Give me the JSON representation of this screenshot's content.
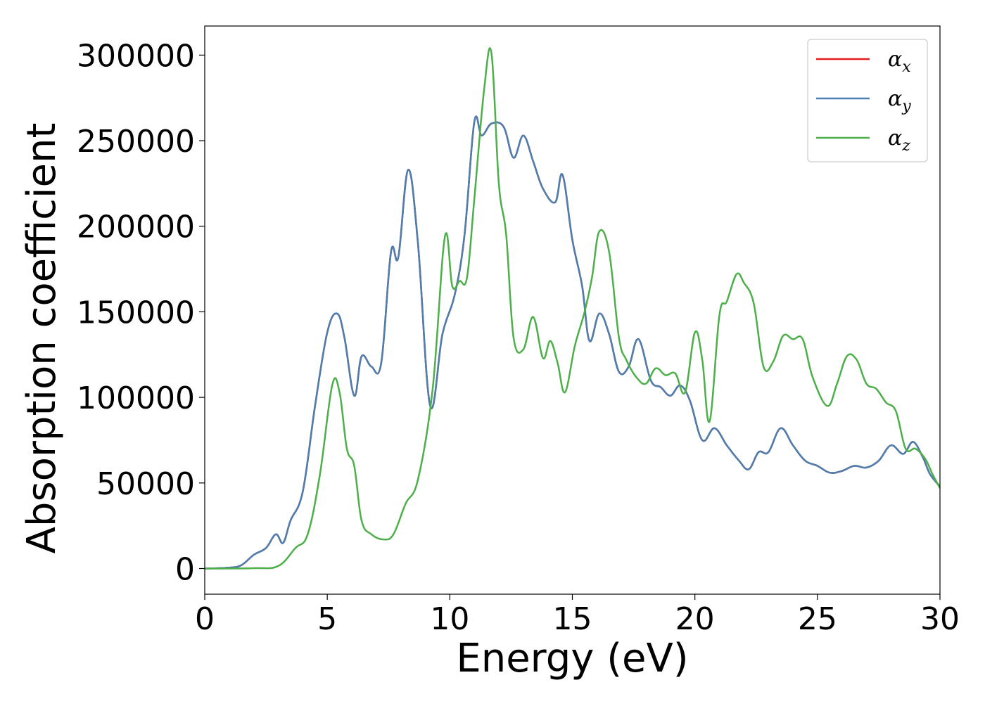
{
  "chart_data": {
    "type": "line",
    "title": "",
    "xlabel": "Energy (eV)",
    "ylabel": "Absorption coefficient",
    "xlim": [
      0,
      30
    ],
    "ylim": [
      -15000,
      317000
    ],
    "xticks": [
      0,
      5,
      10,
      15,
      20,
      25,
      30
    ],
    "xtick_labels": [
      "0",
      "5",
      "10",
      "15",
      "20",
      "25",
      "30"
    ],
    "yticks": [
      0,
      50000,
      100000,
      150000,
      200000,
      250000,
      300000
    ],
    "ytick_labels": [
      "0",
      "50000",
      "100000",
      "150000",
      "200000",
      "250000",
      "300000"
    ],
    "grid": false,
    "legend_position": "top-right",
    "series": [
      {
        "name": "α_x",
        "label_base": "α",
        "label_sub": "x",
        "color": "#e41a1c",
        "x": [
          0,
          1,
          1.5,
          2,
          2.5,
          2.9,
          3.2,
          3.5,
          4,
          4.5,
          5,
          5.4,
          5.7,
          6.1,
          6.4,
          6.8,
          7.2,
          7.6,
          7.9,
          8.3,
          8.7,
          9.2,
          9.7,
          10.2,
          10.6,
          11,
          11.3,
          11.7,
          12.2,
          12.6,
          13,
          13.4,
          13.8,
          14.3,
          14.6,
          15,
          15.4,
          15.7,
          16.1,
          16.5,
          16.9,
          17.3,
          17.7,
          18.2,
          18.6,
          19,
          19.4,
          19.8,
          20.3,
          20.8,
          21.3,
          21.8,
          22.2,
          22.6,
          23,
          23.5,
          24,
          24.5,
          25,
          25.5,
          26,
          26.5,
          27,
          27.5,
          28,
          28.5,
          28.9,
          29.3,
          29.6,
          30
        ],
        "y": [
          0,
          500,
          2000,
          8000,
          12000,
          20000,
          15000,
          28000,
          45000,
          95000,
          138000,
          149000,
          135000,
          101000,
          124000,
          118000,
          120000,
          185000,
          182000,
          233000,
          190000,
          95000,
          137000,
          160000,
          195000,
          261000,
          253000,
          260000,
          258000,
          240000,
          253000,
          238000,
          222000,
          214000,
          230000,
          192000,
          165000,
          133000,
          149000,
          137000,
          115000,
          118000,
          134000,
          110000,
          106000,
          101000,
          107000,
          98000,
          75000,
          82000,
          72000,
          63000,
          58000,
          68000,
          68000,
          82000,
          72000,
          63000,
          60000,
          56000,
          57000,
          60000,
          59000,
          63000,
          72000,
          67000,
          74000,
          65000,
          55000,
          48000
        ]
      },
      {
        "name": "α_y",
        "label_base": "α",
        "label_sub": "y",
        "color": "#4a7fb0",
        "x": [
          0,
          1,
          1.5,
          2,
          2.5,
          2.9,
          3.2,
          3.5,
          4,
          4.5,
          5,
          5.4,
          5.7,
          6.1,
          6.4,
          6.8,
          7.2,
          7.6,
          7.9,
          8.3,
          8.7,
          9.2,
          9.7,
          10.2,
          10.6,
          11,
          11.3,
          11.7,
          12.2,
          12.6,
          13,
          13.4,
          13.8,
          14.3,
          14.6,
          15,
          15.4,
          15.7,
          16.1,
          16.5,
          16.9,
          17.3,
          17.7,
          18.2,
          18.6,
          19,
          19.4,
          19.8,
          20.3,
          20.8,
          21.3,
          21.8,
          22.2,
          22.6,
          23,
          23.5,
          24,
          24.5,
          25,
          25.5,
          26,
          26.5,
          27,
          27.5,
          28,
          28.5,
          28.9,
          29.3,
          29.6,
          30
        ],
        "y": [
          0,
          500,
          2000,
          8000,
          12000,
          20000,
          15000,
          28000,
          45000,
          95000,
          138000,
          149000,
          135000,
          101000,
          124000,
          118000,
          120000,
          185000,
          182000,
          233000,
          190000,
          95000,
          137000,
          160000,
          195000,
          261000,
          253000,
          260000,
          258000,
          240000,
          253000,
          238000,
          222000,
          214000,
          230000,
          192000,
          165000,
          133000,
          149000,
          137000,
          115000,
          118000,
          134000,
          110000,
          106000,
          101000,
          107000,
          98000,
          75000,
          82000,
          72000,
          63000,
          58000,
          68000,
          68000,
          82000,
          72000,
          63000,
          60000,
          56000,
          57000,
          60000,
          59000,
          63000,
          72000,
          67000,
          74000,
          65000,
          55000,
          48000
        ]
      },
      {
        "name": "α_z",
        "label_base": "α",
        "label_sub": "z",
        "color": "#4daf4a",
        "x": [
          0,
          2,
          3,
          3.7,
          4.2,
          4.7,
          5.2,
          5.5,
          5.8,
          6.1,
          6.4,
          6.8,
          7.3,
          7.7,
          8.2,
          8.7,
          9.3,
          9.8,
          10.1,
          10.4,
          10.7,
          11,
          11.4,
          11.7,
          12,
          12.3,
          12.6,
          13,
          13.4,
          13.8,
          14.1,
          14.4,
          14.7,
          15.1,
          15.5,
          15.8,
          16.1,
          16.5,
          16.9,
          17.2,
          17.6,
          18,
          18.4,
          18.8,
          19.2,
          19.6,
          20,
          20.3,
          20.6,
          21,
          21.3,
          21.7,
          22,
          22.4,
          22.8,
          23.2,
          23.6,
          24,
          24.4,
          24.8,
          25.4,
          25.8,
          26.2,
          26.6,
          27,
          27.4,
          27.8,
          28.2,
          28.6,
          29,
          29.4,
          29.7,
          30
        ],
        "y": [
          0,
          200,
          1500,
          12000,
          20000,
          55000,
          107000,
          103000,
          70000,
          60000,
          28000,
          20000,
          17000,
          20000,
          38000,
          52000,
          105000,
          194000,
          165000,
          168000,
          170000,
          216000,
          280000,
          301000,
          225000,
          195000,
          135000,
          128000,
          147000,
          123000,
          133000,
          120000,
          103000,
          130000,
          150000,
          170000,
          197000,
          185000,
          135000,
          122000,
          112000,
          108000,
          117000,
          113000,
          114000,
          103000,
          138000,
          122000,
          86000,
          148000,
          156000,
          172000,
          167000,
          155000,
          118000,
          121000,
          136000,
          134000,
          134000,
          112000,
          95000,
          108000,
          124000,
          122000,
          108000,
          105000,
          97000,
          92000,
          70000,
          70000,
          64000,
          55000,
          47000
        ]
      }
    ]
  }
}
